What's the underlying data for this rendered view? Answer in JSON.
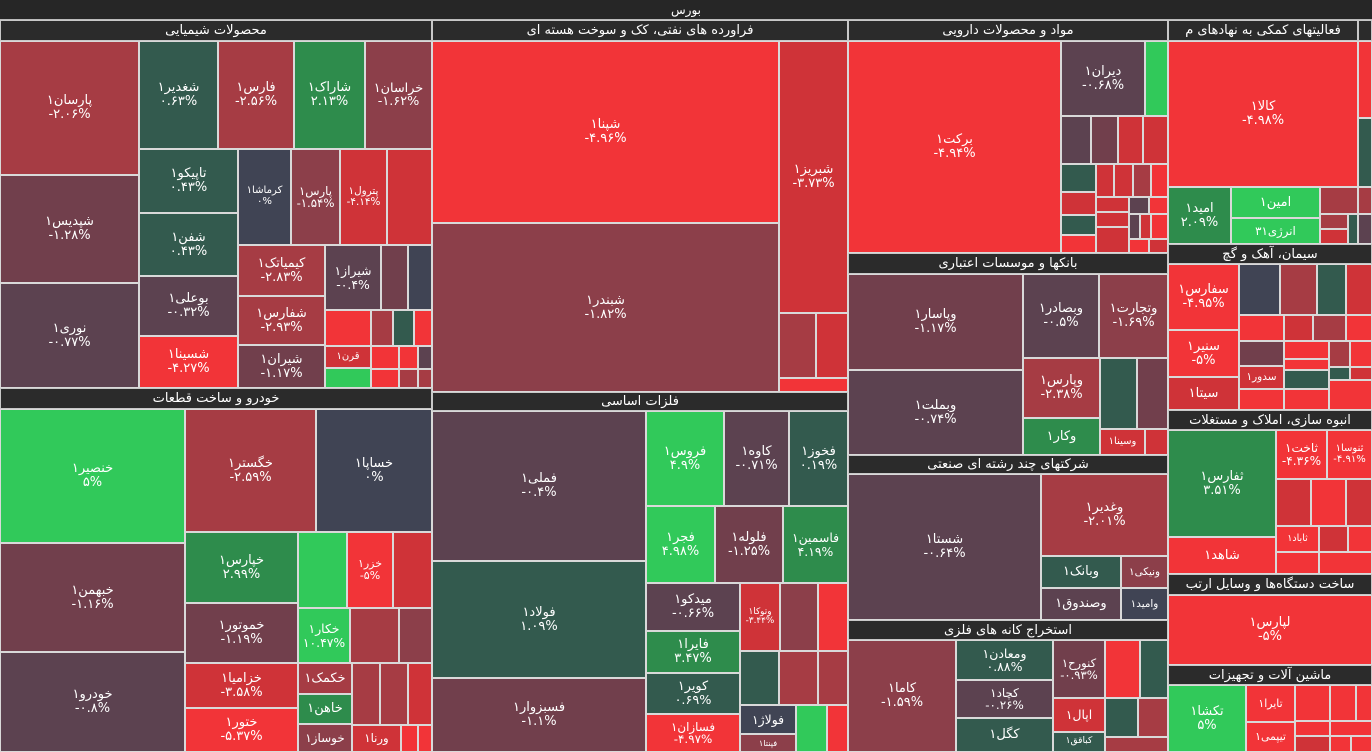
{
  "header": {
    "title": "بورس"
  },
  "palette": {
    "R": "#f23438",
    "r2": "#cf3338",
    "r3": "#a63c44",
    "r4": "#8c3f4a",
    "r5": "#713f4c",
    "r6": "#5c4250",
    "N": "#404454",
    "g1": "#335a4e",
    "g2": "#2e8c4c",
    "G": "#31c95a"
  },
  "sectors": [
    {
      "title": "محصولات شیمیایی",
      "tiles": [
        {
          "n": "پارسان۱",
          "c": "-۲.۰۶%",
          "k": "r3"
        },
        {
          "n": "شپدیس۱",
          "c": "-۱.۲۸%",
          "k": "r5"
        },
        {
          "n": "نوری۱",
          "c": "-۰.۷۷%",
          "k": "r6"
        },
        {
          "n": "شغدیر۱",
          "c": "۰.۶۳%",
          "k": "g1"
        },
        {
          "n": "فارس۱",
          "c": "-۲.۵۶%",
          "k": "r3"
        },
        {
          "n": "شاراک۱",
          "c": "۲.۱۳%",
          "k": "g2"
        },
        {
          "n": "خراسان۱",
          "c": "-۱.۶۲%",
          "k": "r4"
        },
        {
          "n": "تاپیکو۱",
          "c": "۰.۴۳%",
          "k": "g1"
        },
        {
          "n": "شفن۱",
          "c": "۰.۴۳%",
          "k": "g1"
        },
        {
          "n": "بوعلی۱",
          "c": "-۰.۳۲%",
          "k": "r6"
        },
        {
          "n": "شسینا۱",
          "c": "-۴.۲۷%",
          "k": "R"
        },
        {
          "n": "کرماشا۱",
          "c": "۰%",
          "k": "N"
        },
        {
          "n": "پارس۱",
          "c": "-۱.۵۴%",
          "k": "r4"
        },
        {
          "n": "پترول۱",
          "c": "-۴.۱۴%",
          "k": "r2"
        },
        {
          "k": "r2"
        },
        {
          "n": "کیمیاتک۱",
          "c": "-۲.۸۳%",
          "k": "r3"
        },
        {
          "n": "شفارس۱",
          "c": "-۲.۹۳%",
          "k": "r3"
        },
        {
          "n": "شیران۱",
          "c": "-۱.۱۷%",
          "k": "r5"
        },
        {
          "n": "شیراز۱",
          "c": "-۰.۴%",
          "k": "r6"
        },
        {
          "k": "r5"
        },
        {
          "k": "N"
        },
        {
          "k": "R"
        },
        {
          "k": "r3"
        },
        {
          "k": "g1"
        },
        {
          "k": "R"
        },
        {
          "n": "قرن۱",
          "k": "r2"
        },
        {
          "k": "G"
        },
        {
          "k": "R"
        },
        {
          "k": "R"
        },
        {
          "k": "r6"
        },
        {
          "k": "R"
        },
        {
          "k": "r3"
        },
        {
          "k": "r3"
        }
      ]
    },
    {
      "title": "فراورده های نفتی، کک و سوخت هسته ای",
      "tiles": [
        {
          "n": "شپنا۱",
          "c": "-۴.۹۶%",
          "k": "R"
        },
        {
          "n": "شبندر۱",
          "c": "-۱.۸۲%",
          "k": "r4"
        },
        {
          "n": "شبریز۱",
          "c": "-۳.۷۳%",
          "k": "r2"
        },
        {
          "k": "r3"
        },
        {
          "k": "r2"
        },
        {
          "k": "R"
        }
      ]
    },
    {
      "title": "خودرو و ساخت قطعات",
      "tiles": [
        {
          "n": "خنصیر۱",
          "c": "۵%",
          "k": "G"
        },
        {
          "n": "خبهمن۱",
          "c": "-۱.۱۶%",
          "k": "r5"
        },
        {
          "n": "خودرو۱",
          "c": "-۰.۸%",
          "k": "r6"
        },
        {
          "n": "خگستر۱",
          "c": "-۲.۵۹%",
          "k": "r3"
        },
        {
          "n": "خساپا۱",
          "c": "۰%",
          "k": "N"
        },
        {
          "n": "خپارس۱",
          "c": "۲.۹۹%",
          "k": "g2"
        },
        {
          "n": "خموتور۱",
          "c": "-۱.۱۹%",
          "k": "r5"
        },
        {
          "n": "خزامیا۱",
          "c": "-۳.۵۸%",
          "k": "r2"
        },
        {
          "n": "ختور۱",
          "c": "-۵.۳۷%",
          "k": "R"
        },
        {
          "k": "G"
        },
        {
          "n": "خزر۱",
          "c": "-۵%",
          "k": "R"
        },
        {
          "k": "r2"
        },
        {
          "n": "خکار۱",
          "c": "۱۰.۴۷%",
          "k": "G"
        },
        {
          "k": "r3"
        },
        {
          "k": "r4"
        },
        {
          "n": "خکمک۱",
          "k": "r3"
        },
        {
          "n": "خاهن۱",
          "k": "g2"
        },
        {
          "n": "خوساز۱",
          "k": "r4"
        },
        {
          "k": "r3"
        },
        {
          "k": "r3"
        },
        {
          "k": "r2"
        },
        {
          "n": "ورنا۱",
          "k": "r2"
        },
        {
          "k": "R"
        },
        {
          "k": "R"
        }
      ]
    },
    {
      "title": "فلزات اساسی",
      "tiles": [
        {
          "n": "فملی۱",
          "c": "-۰.۴%",
          "k": "r6"
        },
        {
          "n": "فولاد۱",
          "c": "۱.۰۹%",
          "k": "g1"
        },
        {
          "n": "فسبزوار۱",
          "c": "-۱.۱%",
          "k": "r5"
        },
        {
          "n": "فروس۱",
          "c": "۴.۹%",
          "k": "G"
        },
        {
          "n": "کاوه۱",
          "c": "-۰.۷۱%",
          "k": "r6"
        },
        {
          "n": "فخوز۱",
          "c": "۰.۱۹%",
          "k": "g1"
        },
        {
          "n": "فجر۱",
          "c": "۴.۹۸%",
          "k": "G"
        },
        {
          "n": "فلوله۱",
          "c": "-۱.۲۵%",
          "k": "r5"
        },
        {
          "n": "فاسمین۱",
          "c": "۴.۱۹%",
          "k": "g2"
        },
        {
          "n": "میدکو۱",
          "c": "-۰.۶۶%",
          "k": "r6"
        },
        {
          "n": "فایرا۱",
          "c": "۳.۴۷%",
          "k": "g2"
        },
        {
          "n": "کویر۱",
          "c": "۰.۶۹%",
          "k": "g1"
        },
        {
          "n": "فسازان۱",
          "c": "-۴.۹۷%",
          "k": "R"
        },
        {
          "n": "وتوکا۱",
          "c": "-۳.۴۴%",
          "k": "r2"
        },
        {
          "k": "r4"
        },
        {
          "k": "R"
        },
        {
          "k": "g1"
        },
        {
          "k": "r3"
        },
        {
          "k": "r3"
        },
        {
          "n": "فولاژ۱",
          "k": "N"
        },
        {
          "k": "G"
        },
        {
          "k": "R"
        },
        {
          "n": "فپنتا۱",
          "k": "r4"
        }
      ]
    },
    {
      "title": "مواد و محصولات دارویی",
      "tiles": [
        {
          "n": "برکت۱",
          "c": "-۴.۹۴%",
          "k": "R"
        },
        {
          "n": "دیران۱",
          "c": "-۰.۶۸%",
          "k": "r6"
        },
        {
          "k": "G"
        },
        {
          "k": "r6"
        },
        {
          "k": "r5"
        },
        {
          "k": "r2"
        },
        {
          "k": "r2"
        },
        {
          "k": "g1"
        },
        {
          "k": "r2"
        },
        {
          "k": "g1"
        },
        {
          "k": "R"
        },
        {
          "k": "r2"
        },
        {
          "k": "r2"
        },
        {
          "k": "r3"
        },
        {
          "k": "R"
        },
        {
          "k": "r2"
        },
        {
          "k": "r6"
        },
        {
          "k": "R"
        },
        {
          "k": "r2"
        },
        {
          "k": "r2"
        },
        {
          "k": "r6"
        },
        {
          "k": "r2"
        },
        {
          "k": "R"
        },
        {
          "k": "R"
        },
        {
          "k": "r2"
        }
      ]
    },
    {
      "title": "بانکها و موسسات اعتباری",
      "tiles": [
        {
          "n": "وپاسار۱",
          "c": "-۱.۱۷%",
          "k": "r5"
        },
        {
          "n": "وبملت۱",
          "c": "-۰.۷۴%",
          "k": "r6"
        },
        {
          "n": "وبصادر۱",
          "c": "-۰.۵%",
          "k": "r6"
        },
        {
          "n": "وتجارت۱",
          "c": "-۱.۶۹%",
          "k": "r4"
        },
        {
          "n": "وپارس۱",
          "c": "-۲.۳۸%",
          "k": "r3"
        },
        {
          "n": "وکار۱",
          "k": "g2"
        },
        {
          "k": "g1"
        },
        {
          "k": "r5"
        },
        {
          "n": "وسینا۱",
          "k": "r2"
        },
        {
          "k": "r2"
        }
      ]
    },
    {
      "title": "شرکتهای چند رشته ای صنعتی",
      "tiles": [
        {
          "n": "شستا۱",
          "c": "-۰.۶۴%",
          "k": "r6"
        },
        {
          "n": "وغدیر۱",
          "c": "-۲.۰۱%",
          "k": "r3"
        },
        {
          "n": "وبانک۱",
          "k": "g1"
        },
        {
          "n": "ونیکی۱",
          "k": "r4"
        },
        {
          "n": "وصندوق۱",
          "k": "r6"
        },
        {
          "n": "وامید۱",
          "k": "N"
        }
      ]
    },
    {
      "title": "استخراج کانه های فلزی",
      "tiles": [
        {
          "n": "کاما۱",
          "c": "-۱.۵۹%",
          "k": "r4"
        },
        {
          "n": "ومعادن۱",
          "c": "۰.۸۸%",
          "k": "g1"
        },
        {
          "n": "کچاد۱",
          "c": "-۰.۲۶%",
          "k": "r6"
        },
        {
          "n": "کگل۱",
          "k": "g1"
        },
        {
          "n": "کنورح۱",
          "c": "-۰.۹۳%",
          "k": "r5"
        },
        {
          "k": "R"
        },
        {
          "k": "g1"
        },
        {
          "n": "اپال۱",
          "k": "r2"
        },
        {
          "n": "کباقق۱",
          "k": "g1"
        },
        {
          "k": "g1"
        },
        {
          "k": "r3"
        },
        {
          "k": "r3"
        }
      ]
    },
    {
      "title": "فعالیتهای کمکی به نهادهای م",
      "tiles": [
        {
          "n": "کالا۱",
          "c": "-۴.۹۸%",
          "k": "R"
        },
        {
          "n": "امید۱",
          "c": "۲.۰۹%",
          "k": "g2"
        },
        {
          "n": "امین۱",
          "k": "G"
        },
        {
          "n": "انرژی۳۱",
          "k": "G"
        },
        {
          "k": "r3"
        },
        {
          "k": "r3"
        },
        {
          "k": "r2"
        },
        {
          "k": "g1"
        },
        {
          "k": "R"
        },
        {
          "k": "g1"
        },
        {
          "k": "r3"
        },
        {
          "k": "r6"
        }
      ]
    },
    {
      "title": "سیمان، آهک و گچ",
      "tiles": [
        {
          "n": "سفارس۱",
          "c": "-۴.۹۵%",
          "k": "R"
        },
        {
          "n": "سنیر۱",
          "c": "-۵%",
          "k": "R"
        },
        {
          "n": "سیتا۱",
          "k": "r2"
        },
        {
          "k": "N"
        },
        {
          "k": "r3"
        },
        {
          "k": "g1"
        },
        {
          "k": "r2"
        },
        {
          "k": "R"
        },
        {
          "k": "r2"
        },
        {
          "k": "r3"
        },
        {
          "k": "R"
        },
        {
          "k": "r5"
        },
        {
          "n": "سدور۱",
          "k": "r2"
        },
        {
          "k": "R"
        },
        {
          "k": "R"
        },
        {
          "k": "R"
        },
        {
          "k": "g1"
        },
        {
          "k": "R"
        },
        {
          "k": "r3"
        },
        {
          "k": "R"
        },
        {
          "k": "g1"
        },
        {
          "k": "r2"
        },
        {
          "k": "R"
        }
      ]
    },
    {
      "title": "انبوه سازی، املاک و مستغلات",
      "tiles": [
        {
          "n": "ثفارس۱",
          "c": "۳.۵۱%",
          "k": "g2"
        },
        {
          "n": "شاهد۱",
          "k": "R"
        },
        {
          "n": "ثاخت۱",
          "c": "-۴.۳۶%",
          "k": "R"
        },
        {
          "n": "ثنوسا۱",
          "c": "-۴.۹۱%",
          "k": "R"
        },
        {
          "k": "r2"
        },
        {
          "k": "R"
        },
        {
          "k": "r2"
        },
        {
          "n": "ثاباد۱",
          "k": "R"
        },
        {
          "k": "R"
        },
        {
          "k": "r2"
        },
        {
          "k": "R"
        },
        {
          "k": "R"
        }
      ]
    },
    {
      "title": "ساخت دستگاه‌ها و وسایل ارتب",
      "tiles": [
        {
          "n": "لپارس۱",
          "c": "-۵%",
          "k": "R"
        }
      ]
    },
    {
      "title": "ماشین آلات و تجهیزات",
      "tiles": [
        {
          "n": "تکشا۱",
          "c": "۵%",
          "k": "G"
        },
        {
          "n": "تایرا۱",
          "k": "R"
        },
        {
          "n": "تیپمی۱",
          "k": "R"
        },
        {
          "k": "R"
        },
        {
          "k": "R"
        },
        {
          "k": "R"
        },
        {
          "k": "R"
        },
        {
          "k": "R"
        },
        {
          "k": "r2"
        },
        {
          "k": "R"
        },
        {
          "k": "R"
        }
      ]
    }
  ]
}
